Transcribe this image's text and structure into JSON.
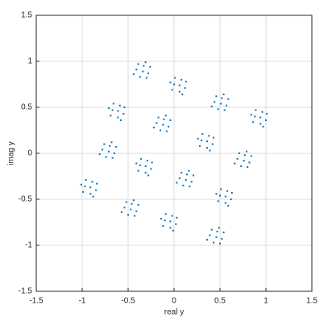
{
  "chart_data": {
    "type": "scatter",
    "xlabel": "real y",
    "ylabel": "imag y",
    "color": "#0072bd",
    "xlim": [
      -1.5,
      1.5
    ],
    "ylim": [
      -1.5,
      1.5
    ],
    "xticks": [
      -1.5,
      -1,
      -0.5,
      0,
      0.5,
      1,
      1.5
    ],
    "yticks": [
      -1.5,
      -1,
      -0.5,
      0,
      0.5,
      1,
      1.5
    ],
    "grid": true,
    "x": [
      -0.33,
      -0.41,
      -0.28,
      -0.37,
      -0.31,
      -0.44,
      -0.34,
      -0.26,
      -0.39,
      -0.3,
      0.0,
      0.06,
      0.08,
      0.12,
      -0.04,
      0.09,
      0.06,
      0.01,
      -0.02,
      0.13,
      0.52,
      0.44,
      0.57,
      0.48,
      0.54,
      0.41,
      0.51,
      0.59,
      0.46,
      0.55,
      0.88,
      0.94,
      0.96,
      1.0,
      0.84,
      0.97,
      0.94,
      0.89,
      0.86,
      1.01,
      0.77,
      0.69,
      0.82,
      0.73,
      0.79,
      0.66,
      0.76,
      0.84,
      0.71,
      0.8,
      0.5,
      0.56,
      0.58,
      0.62,
      0.46,
      0.59,
      0.56,
      0.51,
      0.48,
      0.63,
      0.47,
      0.39,
      0.52,
      0.43,
      0.49,
      0.36,
      0.46,
      0.54,
      0.41,
      0.5,
      -0.1,
      -0.04,
      -0.02,
      0.02,
      -0.14,
      -0.01,
      -0.04,
      -0.09,
      -0.12,
      0.03,
      -0.46,
      -0.54,
      -0.41,
      -0.5,
      -0.44,
      -0.57,
      -0.47,
      -0.39,
      -0.52,
      -0.43,
      -0.97,
      -0.91,
      -0.89,
      -0.85,
      -1.01,
      -0.88,
      -0.91,
      -0.96,
      -0.99,
      -0.84,
      -0.7,
      -0.78,
      -0.65,
      -0.74,
      -0.68,
      -0.81,
      -0.71,
      -0.63,
      -0.76,
      -0.67,
      -0.67,
      -0.61,
      -0.59,
      -0.55,
      -0.71,
      -0.58,
      -0.61,
      -0.66,
      -0.69,
      -0.54,
      -0.11,
      -0.19,
      -0.06,
      -0.15,
      -0.09,
      -0.22,
      -0.12,
      -0.04,
      -0.17,
      -0.08,
      0.3,
      0.36,
      0.38,
      0.42,
      0.26,
      0.39,
      0.36,
      0.31,
      0.28,
      0.43,
      0.14,
      0.06,
      0.19,
      0.1,
      0.16,
      0.03,
      0.13,
      0.21,
      0.08,
      0.17,
      -0.37,
      -0.31,
      -0.29,
      -0.25,
      -0.41,
      -0.28,
      -0.31,
      -0.36,
      -0.39,
      -0.24
    ],
    "y": [
      0.95,
      0.91,
      0.87,
      0.83,
      0.99,
      0.86,
      0.89,
      0.94,
      0.97,
      0.82,
      0.75,
      0.67,
      0.8,
      0.71,
      0.77,
      0.64,
      0.74,
      0.82,
      0.69,
      0.78,
      0.6,
      0.56,
      0.52,
      0.48,
      0.64,
      0.51,
      0.54,
      0.59,
      0.62,
      0.47,
      0.4,
      0.32,
      0.45,
      0.36,
      0.42,
      0.29,
      0.39,
      0.47,
      0.34,
      0.43,
      -0.02,
      -0.06,
      -0.1,
      -0.14,
      0.02,
      -0.11,
      -0.08,
      -0.03,
      0.0,
      -0.15,
      -0.46,
      -0.54,
      -0.41,
      -0.5,
      -0.44,
      -0.57,
      -0.47,
      -0.39,
      -0.52,
      -0.43,
      -0.85,
      -0.89,
      -0.93,
      -0.97,
      -0.81,
      -0.94,
      -0.91,
      -0.86,
      -0.83,
      -0.98,
      -0.73,
      -0.81,
      -0.68,
      -0.77,
      -0.71,
      -0.84,
      -0.74,
      -0.66,
      -0.79,
      -0.7,
      -0.55,
      -0.59,
      -0.63,
      -0.67,
      -0.51,
      -0.64,
      -0.61,
      -0.56,
      -0.53,
      -0.68,
      -0.36,
      -0.44,
      -0.31,
      -0.4,
      -0.34,
      -0.47,
      -0.37,
      -0.29,
      -0.42,
      -0.33,
      0.08,
      0.04,
      0.0,
      -0.04,
      0.12,
      -0.01,
      0.02,
      0.07,
      0.1,
      -0.05,
      0.47,
      0.39,
      0.52,
      0.43,
      0.49,
      0.36,
      0.46,
      0.54,
      0.41,
      0.5,
      0.37,
      0.33,
      0.29,
      0.25,
      0.41,
      0.28,
      0.31,
      0.36,
      0.39,
      0.24,
      0.14,
      0.06,
      0.19,
      0.1,
      0.16,
      0.03,
      0.13,
      0.21,
      0.08,
      0.17,
      -0.23,
      -0.27,
      -0.31,
      -0.35,
      -0.19,
      -0.32,
      -0.29,
      -0.24,
      -0.21,
      -0.36,
      -0.13,
      -0.21,
      -0.08,
      -0.17,
      -0.11,
      -0.24,
      -0.14,
      -0.06,
      -0.19,
      -0.1
    ]
  }
}
